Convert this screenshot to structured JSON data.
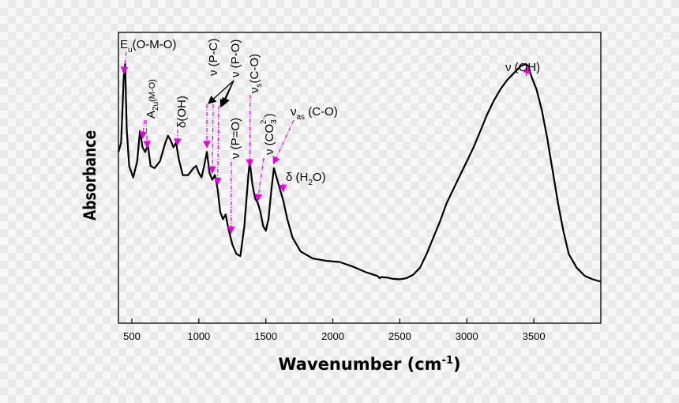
{
  "chart_data": {
    "type": "line",
    "xlabel": "Wavenumber (cm",
    "xlabel_sup": "-1",
    "xlabel_close": ")",
    "ylabel": "Absorbance",
    "xlim": [
      400,
      4000
    ],
    "ylim": [
      0,
      1
    ],
    "xticks": [
      500,
      1000,
      1500,
      2000,
      2500,
      3000,
      3500
    ],
    "grid": false,
    "legend": "none",
    "series": [
      {
        "color": "#000000",
        "x": [
          400,
          420,
          440,
          450,
          462,
          480,
          510,
          540,
          560,
          580,
          600,
          620,
          640,
          670,
          710,
          750,
          770,
          790,
          810,
          830,
          850,
          880,
          920,
          960,
          980,
          1000,
          1020,
          1040,
          1060,
          1080,
          1100,
          1120,
          1140,
          1160,
          1180,
          1200,
          1220,
          1250,
          1280,
          1310,
          1340,
          1370,
          1380,
          1400,
          1420,
          1440,
          1460,
          1480,
          1500,
          1520,
          1540,
          1560,
          1580,
          1600,
          1630,
          1660,
          1700,
          1760,
          1850,
          1950,
          2050,
          2150,
          2250,
          2330,
          2350,
          2360,
          2400,
          2450,
          2500,
          2550,
          2600,
          2650,
          2700,
          2750,
          2800,
          2850,
          2900,
          2950,
          3000,
          3050,
          3100,
          3150,
          3200,
          3250,
          3300,
          3350,
          3400,
          3440,
          3460,
          3480,
          3520,
          3560,
          3600,
          3640,
          3680,
          3720,
          3760,
          3820,
          3880,
          3940,
          4000
        ],
        "y": [
          0.62,
          0.66,
          0.95,
          1.0,
          0.72,
          0.56,
          0.51,
          0.58,
          0.71,
          0.64,
          0.62,
          0.65,
          0.56,
          0.55,
          0.58,
          0.66,
          0.69,
          0.67,
          0.64,
          0.66,
          0.59,
          0.52,
          0.52,
          0.55,
          0.56,
          0.53,
          0.51,
          0.56,
          0.62,
          0.53,
          0.5,
          0.52,
          0.46,
          0.36,
          0.33,
          0.35,
          0.29,
          0.22,
          0.18,
          0.17,
          0.3,
          0.52,
          0.58,
          0.48,
          0.42,
          0.4,
          0.36,
          0.3,
          0.28,
          0.33,
          0.45,
          0.55,
          0.51,
          0.47,
          0.41,
          0.33,
          0.25,
          0.19,
          0.16,
          0.15,
          0.145,
          0.125,
          0.1,
          0.085,
          0.075,
          0.08,
          0.078,
          0.072,
          0.07,
          0.075,
          0.09,
          0.12,
          0.18,
          0.25,
          0.32,
          0.4,
          0.46,
          0.52,
          0.58,
          0.64,
          0.71,
          0.78,
          0.84,
          0.89,
          0.93,
          0.96,
          0.99,
          1.0,
          0.99,
          0.95,
          0.89,
          0.8,
          0.68,
          0.54,
          0.4,
          0.28,
          0.18,
          0.12,
          0.085,
          0.07,
          0.06
        ]
      }
    ],
    "annotations": [
      {
        "label": "E",
        "sub": "u",
        "rest": "(O-M-O)",
        "x": 440,
        "y": 0.95
      },
      {
        "label": "A",
        "sub": "2u",
        "rest": "(M-O)",
        "x": 600,
        "y": 0.66
      },
      {
        "label": "δ(OH)",
        "x": 840,
        "y": 0.64
      },
      {
        "label": "ν (P-C)",
        "x": 1080,
        "y": 0.58
      },
      {
        "label": "ν (P-O)",
        "x": 1140,
        "y": 0.5
      },
      {
        "label": "ν",
        "sub": "s",
        "rest": "(C-O)",
        "x": 1380,
        "y": 0.54
      },
      {
        "label": "ν (P=O)",
        "x": 1250,
        "y": 0.25
      },
      {
        "label": "ν (CO",
        "sub": "3",
        "sup": "2-",
        "rest": ")",
        "x": 1440,
        "y": 0.4
      },
      {
        "label": "ν",
        "sub": "as",
        "rest": " (C-O)",
        "x": 1560,
        "y": 0.55
      },
      {
        "label": "δ (H",
        "sub": "2",
        "rest": "O)",
        "x": 1630,
        "y": 0.44
      },
      {
        "label": "ν (OH)",
        "x": 3460,
        "y": 0.97
      }
    ]
  }
}
